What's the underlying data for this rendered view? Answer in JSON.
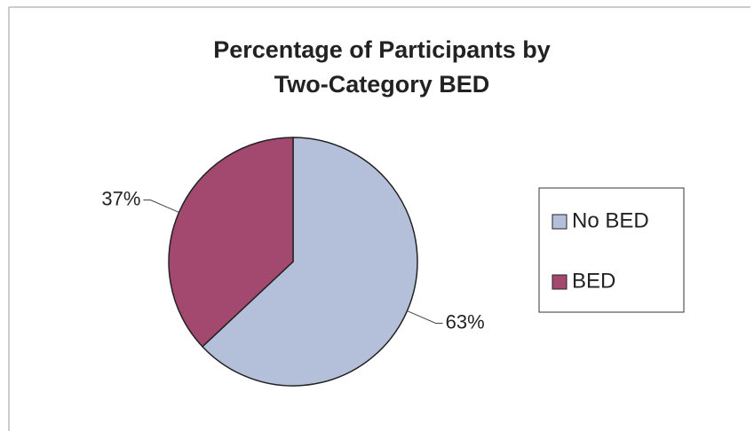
{
  "chart_data": {
    "type": "pie",
    "title": [
      "Percentage of Participants by",
      "Two-Category BED"
    ],
    "categories": [
      "No BED",
      "BED"
    ],
    "values": [
      63,
      37
    ],
    "value_labels": [
      "63%",
      "37%"
    ],
    "colors": [
      "#b4bfda",
      "#a3486f"
    ],
    "legend": "right"
  }
}
